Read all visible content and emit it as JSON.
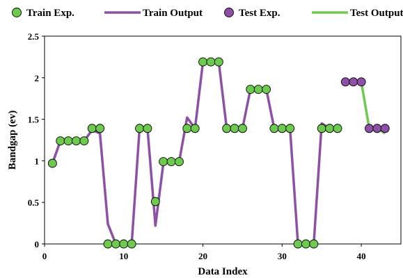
{
  "chart_data": {
    "type": "line",
    "title": "",
    "xlabel": "Data Index",
    "ylabel": "Bandgap (ev)",
    "xlim": [
      0,
      45
    ],
    "ylim": [
      0,
      2.5
    ],
    "x_ticks": [
      "0",
      "10",
      "20",
      "30",
      "40"
    ],
    "y_ticks": [
      "0",
      "0.5",
      "1",
      "1.5",
      "2",
      "2.5"
    ],
    "grid": false,
    "legend_position": "top",
    "legend": [
      {
        "label": "Train Exp.",
        "kind": "marker",
        "color": "#6ccb4c"
      },
      {
        "label": "Train Output",
        "kind": "line",
        "color": "#8e4fa6"
      },
      {
        "label": "Test Exp.",
        "kind": "marker",
        "color": "#8e4fa6"
      },
      {
        "label": "Test Output",
        "kind": "line",
        "color": "#6ccb4c"
      }
    ],
    "series": [
      {
        "name": "Train Exp.",
        "kind": "scatter",
        "color": "#6ccb4c",
        "x": [
          1,
          2,
          3,
          4,
          5,
          6,
          7,
          8,
          9,
          10,
          11,
          12,
          13,
          14,
          15,
          16,
          17,
          18,
          19,
          20,
          21,
          22,
          23,
          24,
          25,
          26,
          27,
          28,
          29,
          30,
          31,
          32,
          33,
          34,
          35,
          36,
          37
        ],
        "y": [
          0.97,
          1.24,
          1.24,
          1.24,
          1.24,
          1.39,
          1.39,
          0,
          0,
          0,
          0,
          1.39,
          1.39,
          0.51,
          0.99,
          0.99,
          0.99,
          1.39,
          1.39,
          2.19,
          2.19,
          2.19,
          1.39,
          1.39,
          1.39,
          1.86,
          1.86,
          1.86,
          1.39,
          1.39,
          1.39,
          0,
          0,
          0,
          1.39,
          1.39,
          1.39
        ]
      },
      {
        "name": "Train Output",
        "kind": "line",
        "color": "#8e4fa6",
        "x": [
          1,
          2,
          3,
          4,
          5,
          6,
          7,
          8,
          9,
          10,
          11,
          12,
          13,
          14,
          15,
          16,
          17,
          18,
          19,
          20,
          21,
          22,
          23,
          24,
          25,
          26,
          27,
          28,
          29,
          30,
          31,
          32,
          33,
          34,
          35,
          36,
          37
        ],
        "y": [
          0.97,
          1.24,
          1.24,
          1.24,
          1.24,
          1.37,
          1.33,
          0.24,
          0,
          0,
          0,
          1.39,
          1.39,
          0.22,
          0.97,
          0.99,
          0.99,
          1.52,
          1.39,
          2.19,
          2.19,
          2.19,
          1.39,
          1.39,
          1.39,
          1.86,
          1.86,
          1.86,
          1.39,
          1.39,
          1.39,
          0,
          0,
          0,
          1.45,
          1.39,
          1.39
        ]
      },
      {
        "name": "Test Exp.",
        "kind": "scatter",
        "color": "#8e4fa6",
        "x": [
          38,
          39,
          40,
          41,
          42,
          43
        ],
        "y": [
          1.95,
          1.95,
          1.95,
          1.39,
          1.39,
          1.39
        ]
      },
      {
        "name": "Test Output",
        "kind": "line",
        "color": "#6ccb4c",
        "x": [
          38,
          39,
          40,
          41,
          42,
          43
        ],
        "y": [
          1.95,
          1.95,
          1.95,
          1.39,
          1.39,
          1.33
        ]
      }
    ]
  }
}
